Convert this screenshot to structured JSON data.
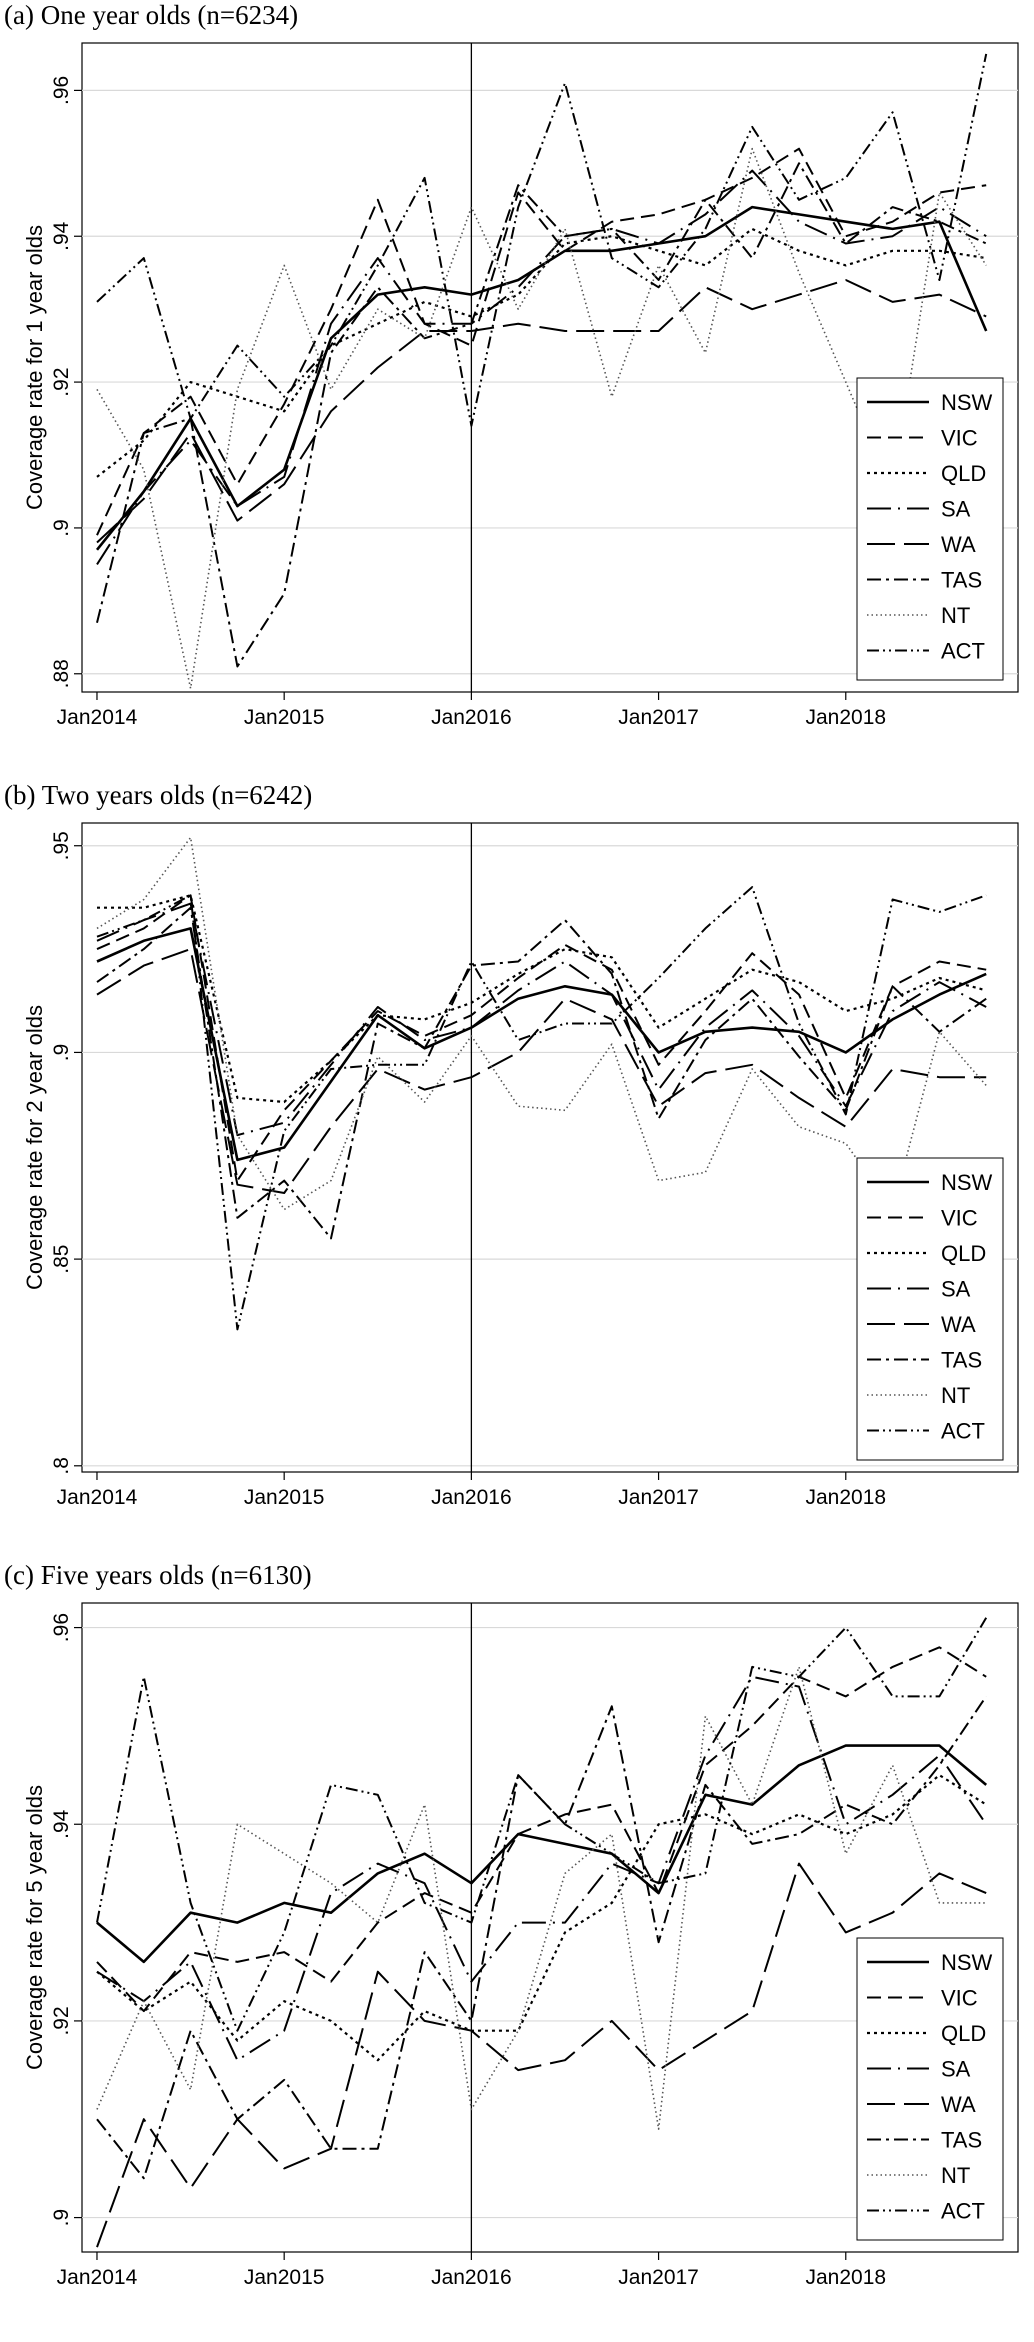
{
  "chart_data": [
    {
      "type": "line",
      "title": "(a) One year olds (n=6234)",
      "xlabel": "",
      "ylabel": "Coverage rate for 1 year olds",
      "x": [
        2014.0,
        2014.25,
        2014.5,
        2014.75,
        2015.0,
        2015.25,
        2015.5,
        2015.75,
        2016.0,
        2016.25,
        2016.5,
        2016.75,
        2017.0,
        2017.25,
        2017.5,
        2017.75,
        2018.0,
        2018.25,
        2018.5,
        2018.75
      ],
      "xticks": [
        {
          "value": 2014,
          "label": "Jan2014"
        },
        {
          "value": 2015,
          "label": "Jan2015"
        },
        {
          "value": 2016,
          "label": "Jan2016"
        },
        {
          "value": 2017,
          "label": "Jan2017"
        },
        {
          "value": 2018,
          "label": "Jan2018"
        }
      ],
      "yticks": [
        {
          "value": 0.88,
          "label": ".88"
        },
        {
          "value": 0.9,
          "label": ".9"
        },
        {
          "value": 0.92,
          "label": ".92"
        },
        {
          "value": 0.94,
          "label": ".94"
        },
        {
          "value": 0.96,
          "label": ".96"
        }
      ],
      "xlim": [
        2013.92,
        2018.92
      ],
      "ylim": [
        0.8775,
        0.9665
      ],
      "vline": 2016,
      "grid": true,
      "legend_position": "right",
      "series": [
        {
          "name": "NSW",
          "style": "solid",
          "values": [
            0.897,
            0.905,
            0.915,
            0.903,
            0.908,
            0.926,
            0.932,
            0.933,
            0.932,
            0.934,
            0.938,
            0.938,
            0.939,
            0.94,
            0.944,
            0.943,
            0.942,
            0.941,
            0.942,
            0.927
          ]
        },
        {
          "name": "VIC",
          "style": "dash",
          "values": [
            0.899,
            0.913,
            0.918,
            0.906,
            0.917,
            0.93,
            0.945,
            0.928,
            0.925,
            0.946,
            0.938,
            0.942,
            0.943,
            0.945,
            0.948,
            0.952,
            0.94,
            0.942,
            0.946,
            0.947
          ]
        },
        {
          "name": "QLD",
          "style": "dot",
          "values": [
            0.907,
            0.912,
            0.92,
            0.918,
            0.916,
            0.925,
            0.928,
            0.931,
            0.929,
            0.932,
            0.939,
            0.94,
            0.938,
            0.936,
            0.941,
            0.938,
            0.936,
            0.938,
            0.938,
            0.937
          ]
        },
        {
          "name": "SA",
          "style": "longdash",
          "values": [
            0.895,
            0.905,
            0.912,
            0.903,
            0.907,
            0.928,
            0.937,
            0.928,
            0.928,
            0.933,
            0.94,
            0.941,
            0.939,
            0.943,
            0.949,
            0.942,
            0.939,
            0.94,
            0.944,
            0.94
          ]
        },
        {
          "name": "WA",
          "style": "longdash2",
          "values": [
            0.898,
            0.904,
            0.913,
            0.901,
            0.906,
            0.916,
            0.922,
            0.927,
            0.927,
            0.928,
            0.927,
            0.927,
            0.927,
            0.933,
            0.93,
            0.932,
            0.934,
            0.931,
            0.932,
            0.929
          ]
        },
        {
          "name": "TAS",
          "style": "dashdot",
          "values": [
            0.887,
            0.913,
            0.915,
            0.881,
            0.891,
            0.924,
            0.933,
            0.926,
            0.928,
            0.947,
            0.94,
            0.941,
            0.934,
            0.945,
            0.937,
            0.95,
            0.939,
            0.944,
            0.942,
            0.939
          ]
        },
        {
          "name": "NT",
          "style": "finedot",
          "values": [
            0.919,
            0.908,
            0.878,
            0.919,
            0.936,
            0.919,
            0.93,
            0.926,
            0.944,
            0.93,
            0.941,
            0.918,
            0.936,
            0.924,
            0.952,
            0.935,
            0.92,
            0.905,
            0.946,
            0.936
          ]
        },
        {
          "name": "ACT",
          "style": "dashdotdot",
          "values": [
            0.931,
            0.937,
            0.915,
            0.925,
            0.918,
            0.925,
            0.936,
            0.948,
            0.914,
            0.944,
            0.961,
            0.937,
            0.933,
            0.941,
            0.955,
            0.945,
            0.948,
            0.957,
            0.934,
            0.965
          ]
        }
      ]
    },
    {
      "type": "line",
      "title": "(b) Two years olds (n=6242)",
      "xlabel": "",
      "ylabel": "Coverage rate for 2 year olds",
      "x": [
        2014.0,
        2014.25,
        2014.5,
        2014.75,
        2015.0,
        2015.25,
        2015.5,
        2015.75,
        2016.0,
        2016.25,
        2016.5,
        2016.75,
        2017.0,
        2017.25,
        2017.5,
        2017.75,
        2018.0,
        2018.25,
        2018.5,
        2018.75
      ],
      "xticks": [
        {
          "value": 2014,
          "label": "Jan2014"
        },
        {
          "value": 2015,
          "label": "Jan2015"
        },
        {
          "value": 2016,
          "label": "Jan2016"
        },
        {
          "value": 2017,
          "label": "Jan2017"
        },
        {
          "value": 2018,
          "label": "Jan2018"
        }
      ],
      "yticks": [
        {
          "value": 0.8,
          "label": ".8"
        },
        {
          "value": 0.85,
          "label": ".85"
        },
        {
          "value": 0.9,
          "label": ".9"
        },
        {
          "value": 0.95,
          "label": ".95"
        }
      ],
      "xlim": [
        2013.92,
        2018.92
      ],
      "ylim": [
        0.7985,
        0.9555
      ],
      "vline": 2016,
      "grid": true,
      "legend_position": "right",
      "series": [
        {
          "name": "NSW",
          "style": "solid",
          "values": [
            0.922,
            0.927,
            0.93,
            0.874,
            0.877,
            0.893,
            0.909,
            0.901,
            0.906,
            0.913,
            0.916,
            0.914,
            0.9,
            0.905,
            0.906,
            0.905,
            0.9,
            0.908,
            0.914,
            0.919
          ]
        },
        {
          "name": "VIC",
          "style": "dash",
          "values": [
            0.925,
            0.93,
            0.938,
            0.869,
            0.886,
            0.898,
            0.91,
            0.904,
            0.909,
            0.918,
            0.926,
            0.92,
            0.897,
            0.91,
            0.924,
            0.914,
            0.889,
            0.916,
            0.922,
            0.92
          ]
        },
        {
          "name": "QLD",
          "style": "dot",
          "values": [
            0.935,
            0.935,
            0.938,
            0.889,
            0.888,
            0.898,
            0.909,
            0.908,
            0.912,
            0.919,
            0.925,
            0.923,
            0.906,
            0.913,
            0.92,
            0.917,
            0.91,
            0.913,
            0.918,
            0.915
          ]
        },
        {
          "name": "SA",
          "style": "longdash",
          "values": [
            0.927,
            0.932,
            0.936,
            0.88,
            0.883,
            0.897,
            0.911,
            0.903,
            0.906,
            0.915,
            0.922,
            0.914,
            0.891,
            0.906,
            0.915,
            0.904,
            0.887,
            0.91,
            0.917,
            0.911
          ]
        },
        {
          "name": "WA",
          "style": "longdash2",
          "values": [
            0.914,
            0.921,
            0.925,
            0.868,
            0.866,
            0.882,
            0.896,
            0.891,
            0.894,
            0.9,
            0.913,
            0.908,
            0.887,
            0.895,
            0.897,
            0.889,
            0.882,
            0.896,
            0.894,
            0.894
          ]
        },
        {
          "name": "TAS",
          "style": "dashdot",
          "values": [
            0.917,
            0.925,
            0.935,
            0.86,
            0.869,
            0.855,
            0.907,
            0.901,
            0.921,
            0.922,
            0.932,
            0.919,
            0.884,
            0.903,
            0.913,
            0.899,
            0.886,
            0.916,
            0.905,
            0.913
          ]
        },
        {
          "name": "NT",
          "style": "finedot",
          "values": [
            0.93,
            0.937,
            0.952,
            0.88,
            0.862,
            0.869,
            0.899,
            0.888,
            0.904,
            0.887,
            0.886,
            0.902,
            0.869,
            0.871,
            0.896,
            0.882,
            0.878,
            0.862,
            0.905,
            0.892
          ]
        },
        {
          "name": "ACT",
          "style": "dashdotdot",
          "values": [
            0.928,
            0.932,
            0.938,
            0.833,
            0.881,
            0.896,
            0.897,
            0.897,
            0.922,
            0.903,
            0.907,
            0.907,
            0.918,
            0.93,
            0.94,
            0.907,
            0.885,
            0.937,
            0.934,
            0.938
          ]
        }
      ]
    },
    {
      "type": "line",
      "title": "(c) Five years olds (n=6130)",
      "xlabel": "",
      "ylabel": "Coverage rate for 5 year olds",
      "x": [
        2014.0,
        2014.25,
        2014.5,
        2014.75,
        2015.0,
        2015.25,
        2015.5,
        2015.75,
        2016.0,
        2016.25,
        2016.5,
        2016.75,
        2017.0,
        2017.25,
        2017.5,
        2017.75,
        2018.0,
        2018.25,
        2018.5,
        2018.75
      ],
      "xticks": [
        {
          "value": 2014,
          "label": "Jan2014"
        },
        {
          "value": 2015,
          "label": "Jan2015"
        },
        {
          "value": 2016,
          "label": "Jan2016"
        },
        {
          "value": 2017,
          "label": "Jan2017"
        },
        {
          "value": 2018,
          "label": "Jan2018"
        }
      ],
      "yticks": [
        {
          "value": 0.9,
          "label": ".9"
        },
        {
          "value": 0.92,
          "label": ".92"
        },
        {
          "value": 0.94,
          "label": ".94"
        },
        {
          "value": 0.96,
          "label": ".96"
        }
      ],
      "xlim": [
        2013.92,
        2018.92
      ],
      "ylim": [
        0.8965,
        0.9625
      ],
      "vline": 2016,
      "grid": true,
      "legend_position": "right",
      "series": [
        {
          "name": "NSW",
          "style": "solid",
          "values": [
            0.93,
            0.926,
            0.931,
            0.93,
            0.932,
            0.931,
            0.935,
            0.937,
            0.934,
            0.939,
            0.938,
            0.937,
            0.933,
            0.943,
            0.942,
            0.946,
            0.948,
            0.948,
            0.948,
            0.944
          ]
        },
        {
          "name": "VIC",
          "style": "dash",
          "values": [
            0.926,
            0.921,
            0.927,
            0.926,
            0.927,
            0.924,
            0.93,
            0.933,
            0.931,
            0.939,
            0.941,
            0.942,
            0.933,
            0.946,
            0.95,
            0.955,
            0.953,
            0.956,
            0.958,
            0.955
          ]
        },
        {
          "name": "QLD",
          "style": "dot",
          "values": [
            0.925,
            0.921,
            0.924,
            0.918,
            0.922,
            0.92,
            0.916,
            0.921,
            0.919,
            0.919,
            0.929,
            0.932,
            0.94,
            0.941,
            0.939,
            0.941,
            0.939,
            0.941,
            0.945,
            0.942
          ]
        },
        {
          "name": "SA",
          "style": "longdash",
          "values": [
            0.925,
            0.922,
            0.926,
            0.916,
            0.919,
            0.933,
            0.936,
            0.934,
            0.924,
            0.93,
            0.93,
            0.936,
            0.934,
            0.947,
            0.955,
            0.954,
            0.94,
            0.943,
            0.947,
            0.94
          ]
        },
        {
          "name": "WA",
          "style": "longdash2",
          "values": [
            0.897,
            0.91,
            0.903,
            0.91,
            0.905,
            0.907,
            0.925,
            0.92,
            0.919,
            0.915,
            0.916,
            0.92,
            0.915,
            0.918,
            0.921,
            0.936,
            0.929,
            0.931,
            0.935,
            0.933
          ]
        },
        {
          "name": "TAS",
          "style": "dashdot",
          "values": [
            0.91,
            0.904,
            0.919,
            0.91,
            0.914,
            0.907,
            0.907,
            0.927,
            0.92,
            0.945,
            0.94,
            0.952,
            0.928,
            0.944,
            0.938,
            0.939,
            0.942,
            0.94,
            0.946,
            0.953
          ]
        },
        {
          "name": "NT",
          "style": "finedot",
          "values": [
            0.911,
            0.922,
            0.913,
            0.94,
            0.937,
            0.934,
            0.93,
            0.942,
            0.911,
            0.919,
            0.935,
            0.939,
            0.909,
            0.951,
            0.942,
            0.956,
            0.937,
            0.946,
            0.932,
            0.932
          ]
        },
        {
          "name": "ACT",
          "style": "dashdotdot",
          "values": [
            0.93,
            0.955,
            0.932,
            0.919,
            0.929,
            0.944,
            0.943,
            0.932,
            0.93,
            0.945,
            0.94,
            0.937,
            0.934,
            0.935,
            0.956,
            0.955,
            0.96,
            0.953,
            0.953,
            0.961
          ]
        }
      ]
    }
  ]
}
